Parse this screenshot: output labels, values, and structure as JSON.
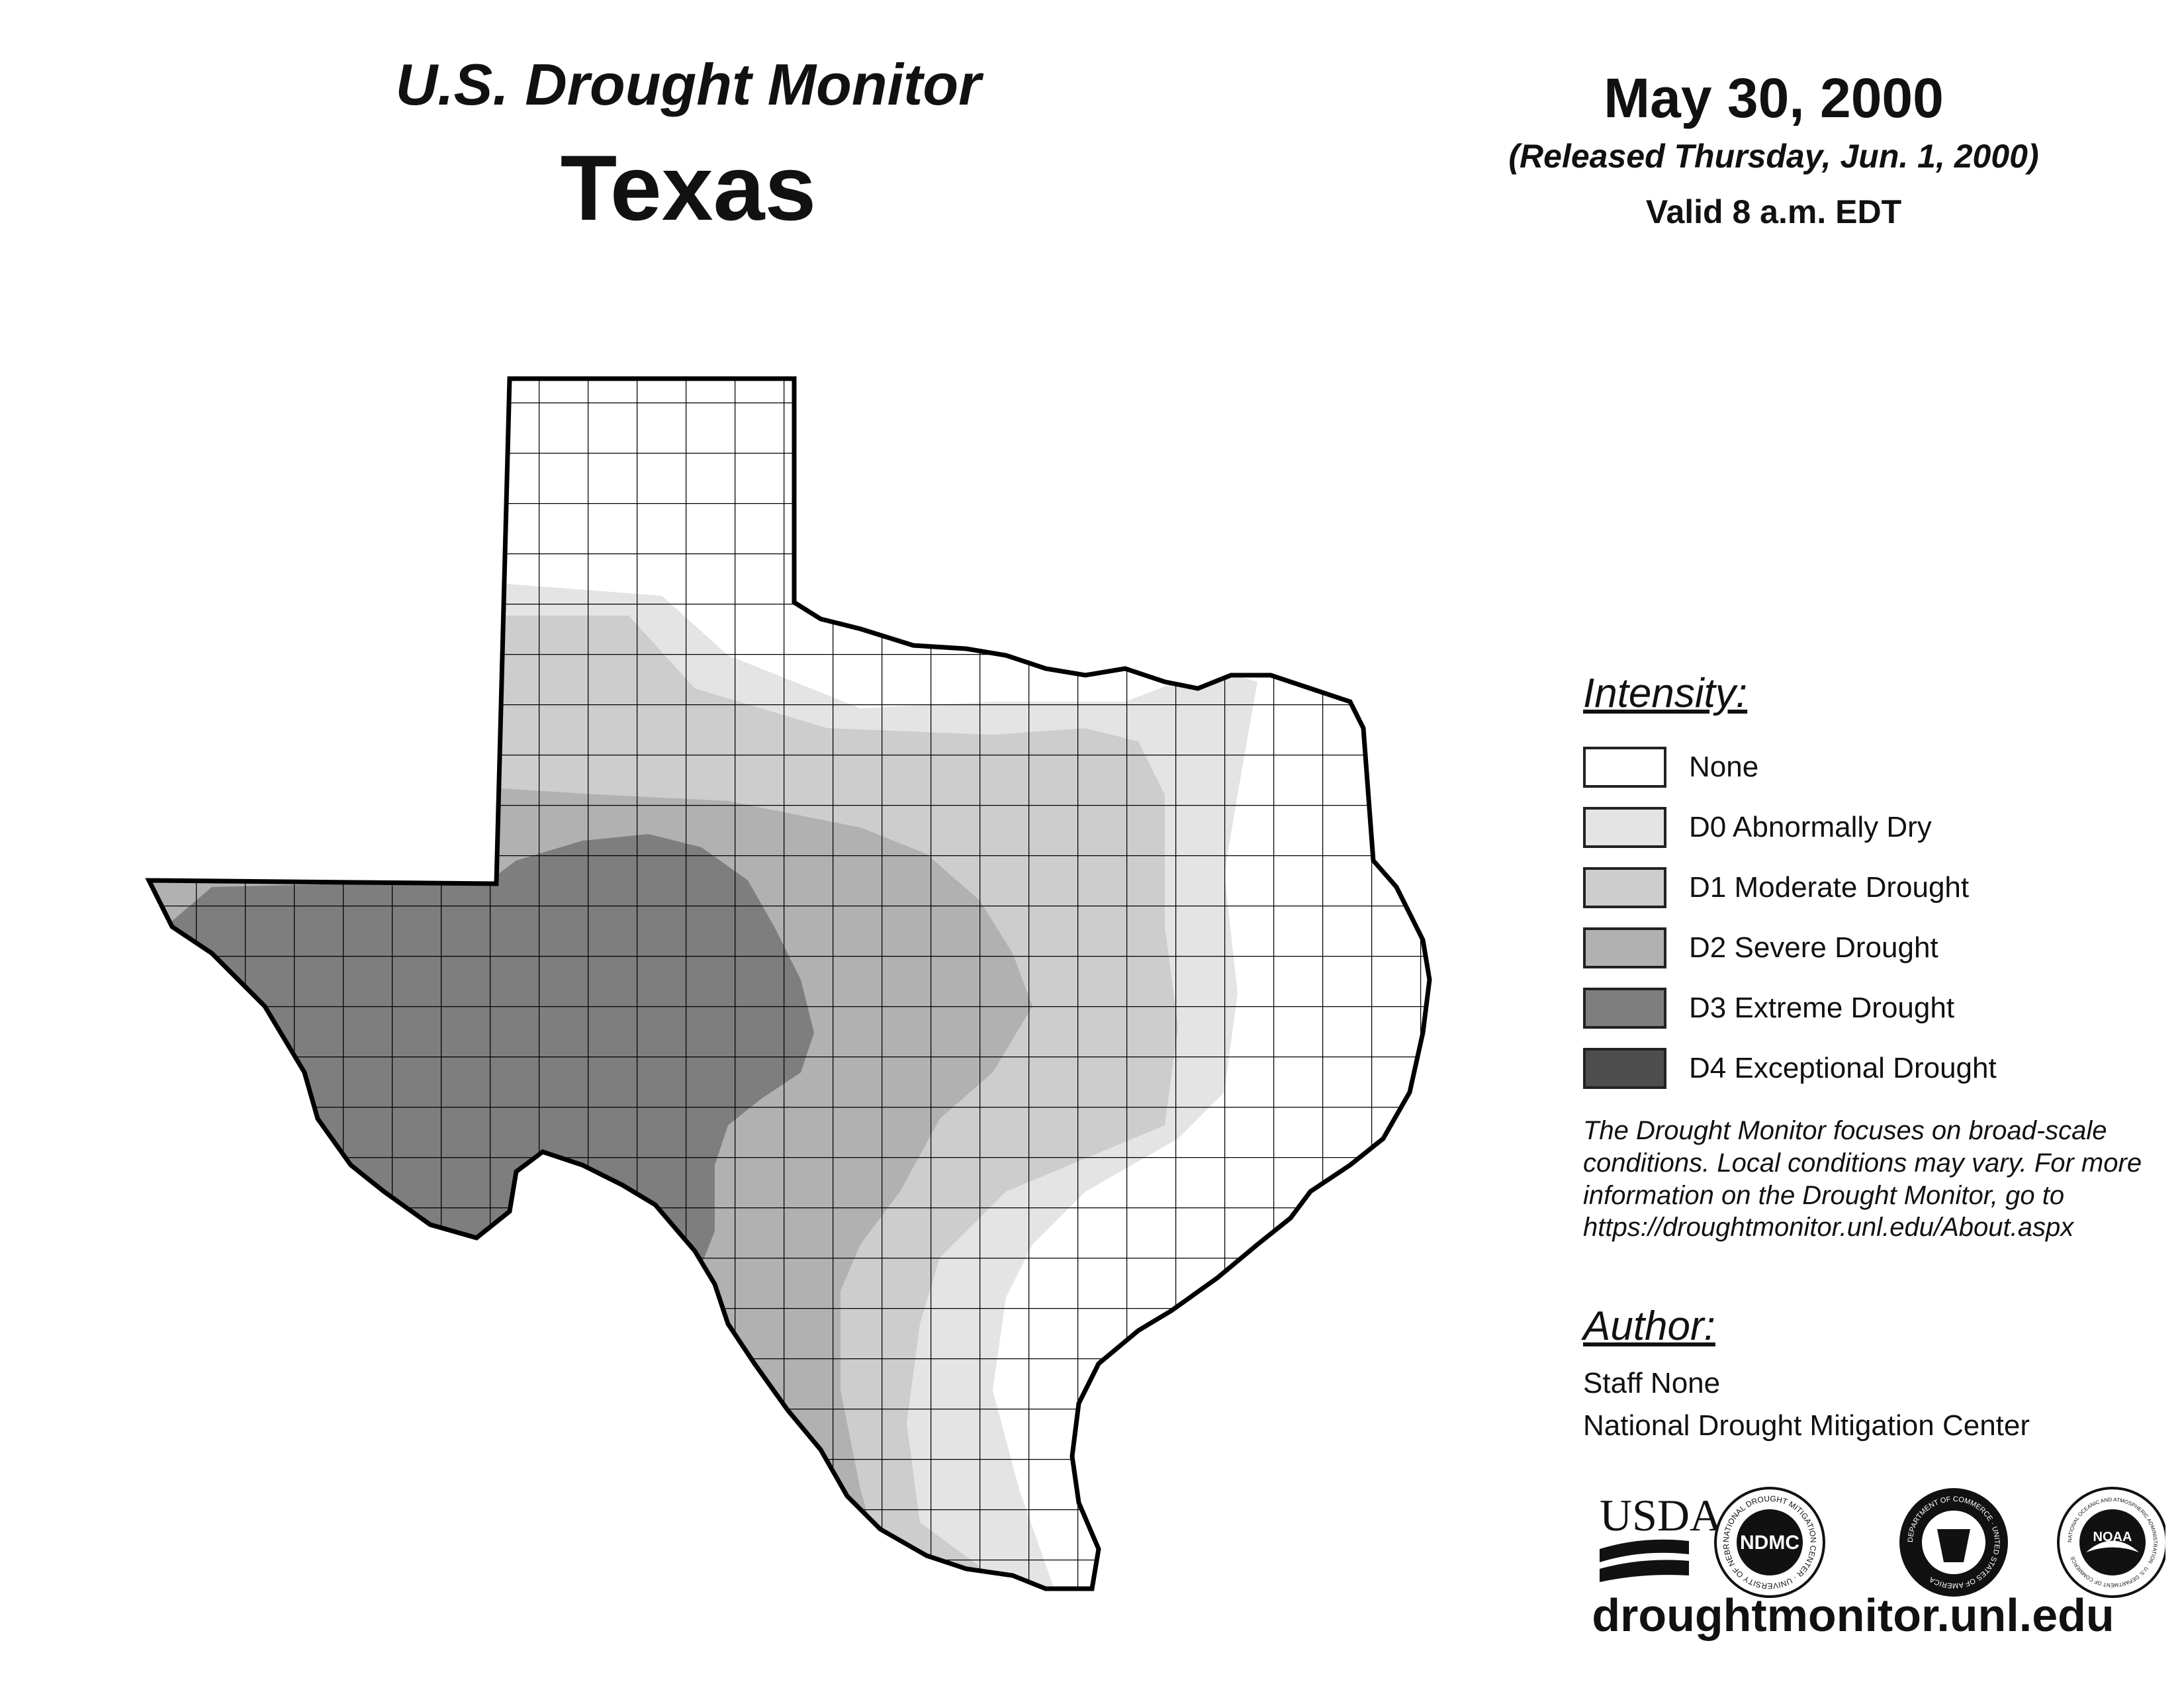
{
  "header": {
    "subtitle": "U.S. Drought Monitor",
    "state": "Texas",
    "date": "May 30, 2000",
    "release": "(Released Thursday, Jun. 1, 2000)",
    "valid": "Valid 8 a.m. EDT"
  },
  "legend": {
    "heading": "Intensity:",
    "items": [
      {
        "label": "None",
        "color": "#ffffff"
      },
      {
        "label": "D0 Abnormally Dry",
        "color": "#e4e4e4"
      },
      {
        "label": "D1 Moderate Drought",
        "color": "#cdcdcd"
      },
      {
        "label": "D2 Severe Drought",
        "color": "#b1b1b1"
      },
      {
        "label": "D3 Extreme Drought",
        "color": "#7e7e7e"
      },
      {
        "label": "D4 Exceptional Drought",
        "color": "#4e4e4e"
      }
    ]
  },
  "disclaimer": "The Drought Monitor focuses on broad-scale conditions. Local conditions may vary. For more information on the Drought Monitor, go to https://droughtmonitor.unl.edu/About.aspx",
  "author": {
    "heading": "Author:",
    "name": "Staff None",
    "org": "National Drought Mitigation Center"
  },
  "logos": {
    "usda": "USDA",
    "ndmc": "NDMC",
    "ndmc_ring": "NATIONAL DROUGHT MITIGATION CENTER · UNIVERSITY OF NEBRASKA",
    "commerce_ring": "DEPARTMENT OF COMMERCE · UNITED STATES OF AMERICA",
    "noaa": "NOAA",
    "noaa_ring": "NATIONAL OCEANIC AND ATMOSPHERIC ADMINISTRATION · U.S. DEPARTMENT OF COMMERCE"
  },
  "website": "droughtmonitor.unl.edu"
}
